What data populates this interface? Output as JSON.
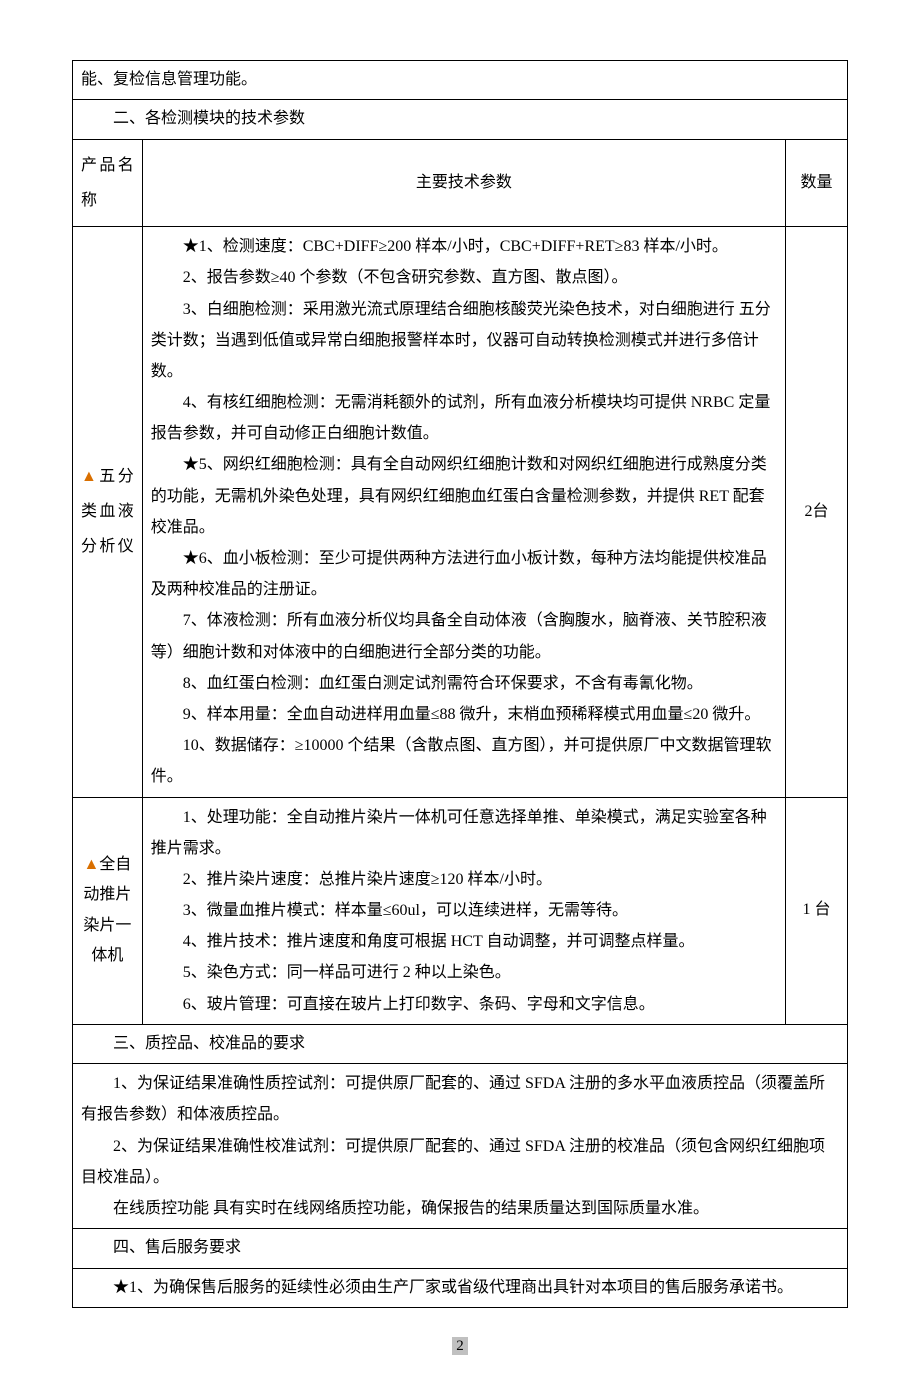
{
  "tableLayout": {
    "columnWidths": [
      "9%",
      "83%",
      "8%"
    ],
    "borderColor": "#000000",
    "fontSize": 16,
    "lineHeight": 1.9
  },
  "colors": {
    "star": "#d96f00",
    "text": "#000000",
    "background": "#ffffff",
    "pageNumBg": "#c0c0c0"
  },
  "topRemnant": "能、复检信息管理功能。",
  "section2Title": "二、各检测模块的技术参数",
  "headers": {
    "product": "产品名称",
    "spec": "主要技术参数",
    "qty": "数量"
  },
  "row1": {
    "productPrefix": "▲",
    "productName": "五分类血液分析仪",
    "qty": "2台",
    "specs": [
      "★1、检测速度：CBC+DIFF≥200 样本/小时，CBC+DIFF+RET≥83 样本/小时。",
      "2、报告参数≥40 个参数（不包含研究参数、直方图、散点图）。",
      "3、白细胞检测：采用激光流式原理结合细胞核酸荧光染色技术，对白细胞进行 五分类计数；当遇到低值或异常白细胞报警样本时，仪器可自动转换检测模式并进行多倍计数。",
      "4、有核红细胞检测：无需消耗额外的试剂，所有血液分析模块均可提供 NRBC 定量报告参数，并可自动修正白细胞计数值。",
      "★5、网织红细胞检测：具有全自动网织红细胞计数和对网织红细胞进行成熟度分类的功能，无需机外染色处理，具有网织红细胞血红蛋白含量检测参数，并提供 RET 配套校准品。",
      "★6、血小板检测：至少可提供两种方法进行血小板计数，每种方法均能提供校准品及两种校准品的注册证。",
      "7、体液检测：所有血液分析仪均具备全自动体液（含胸腹水，脑脊液、关节腔积液等）细胞计数和对体液中的白细胞进行全部分类的功能。",
      "8、血红蛋白检测：血红蛋白测定试剂需符合环保要求，不含有毒氰化物。",
      "9、样本用量：全血自动进样用血量≤88 微升，末梢血预稀释模式用血量≤20 微升。",
      "10、数据储存：≥10000 个结果（含散点图、直方图），并可提供原厂中文数据管理软件。"
    ]
  },
  "row2": {
    "productPrefix": "▲",
    "productName": "全自动推片染片一体机",
    "qty": "1 台",
    "specs": [
      "1、处理功能：全自动推片染片一体机可任意选择单推、单染模式，满足实验室各种推片需求。",
      "2、推片染片速度：总推片染片速度≥120 样本/小时。",
      "3、微量血推片模式：样本量≤60ul，可以连续进样，无需等待。",
      "4、推片技术：推片速度和角度可根据 HCT 自动调整，并可调整点样量。",
      "5、染色方式：同一样品可进行 2 种以上染色。",
      "6、玻片管理：可直接在玻片上打印数字、条码、字母和文字信息。"
    ]
  },
  "section3Title": "三、质控品、校准品的要求",
  "section3Body": [
    "1、为保证结果准确性质控试剂：可提供原厂配套的、通过 SFDA 注册的多水平血液质控品（须覆盖所有报告参数）和体液质控品。",
    "2、为保证结果准确性校准试剂：可提供原厂配套的、通过 SFDA 注册的校准品（须包含网织红细胞项目校准品）。",
    "在线质控功能  具有实时在线网络质控功能，确保报告的结果质量达到国际质量水准。"
  ],
  "section4Title": "四、售后服务要求",
  "section4Body": "★1、为确保售后服务的延续性必须由生产厂家或省级代理商出具针对本项目的售后服务承诺书。",
  "pageNumber": "2"
}
